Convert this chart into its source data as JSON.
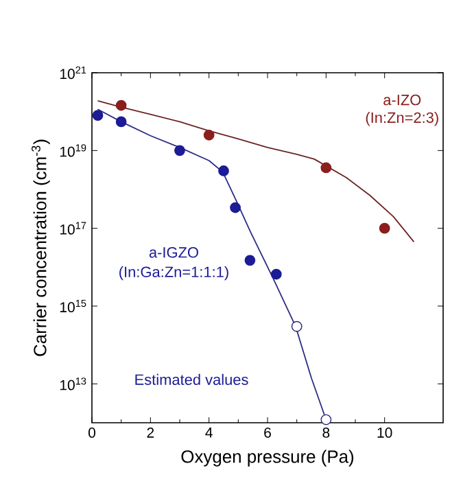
{
  "chart_data": {
    "type": "scatter",
    "xlabel": "Oxygen pressure (Pa)",
    "ylabel": "Carrier concentration (cm$^{-3}$)",
    "log": "y",
    "grid": false,
    "xlim": [
      0,
      12
    ],
    "ylim": [
      1000000000000.0,
      1e+21
    ],
    "xticks": [
      0,
      2,
      4,
      6,
      8,
      10
    ],
    "yticks": [
      {
        "value": 10000000000000.0,
        "label": "10$^{13}$"
      },
      {
        "value": 1000000000000000.0,
        "label": "10$^{15}$"
      },
      {
        "value": 1e+17,
        "label": "10$^{17}$"
      },
      {
        "value": 1e+19,
        "label": "10$^{19}$"
      },
      {
        "value": 1e+21,
        "label": "10$^{21}$"
      }
    ],
    "series": [
      {
        "type": "line",
        "color": "#6b2323",
        "line_style": "solid",
        "marker": "none",
        "x": [
          0.2,
          1,
          2,
          3,
          4,
          5,
          6,
          7,
          7.6,
          8.7,
          9.5,
          10.3,
          11.0
        ],
        "values": [
          1.9e+20,
          1.3e+20,
          8.5e+19,
          5.5e+19,
          3.2e+19,
          2e+19,
          1.2e+19,
          8e+18,
          6e+18,
          2e+18,
          7e+17,
          2e+17,
          4.5e+16
        ]
      },
      {
        "color": "#8b1e1e",
        "marker": "circle",
        "x": [
          1,
          4,
          8,
          10
        ],
        "values": [
          1.45e+20,
          2.5e+19,
          3.6e+18,
          1e+17
        ]
      },
      {
        "type": "line",
        "color": "#2b2b86",
        "line_style": "solid",
        "marker": "none",
        "x": [
          0.2,
          1,
          2,
          3,
          4,
          4.47,
          4.95,
          5.42,
          6.2,
          6.96,
          7.5,
          8
        ],
        "values": [
          1.15e+20,
          5.5e+19,
          2.4e+19,
          1.2e+19,
          5.5e+18,
          2.8e+18,
          4.8e+17,
          8e+16,
          5000000000000000.0,
          300000000000000.0,
          14000000000000.0,
          1200000000000.0
        ]
      },
      {
        "color": "#1c1c96",
        "marker": "circle",
        "x": [
          0.2,
          1,
          3,
          4.5,
          4.9,
          5.4,
          6.3
        ],
        "values": [
          8e+19,
          5.5e+19,
          1e+19,
          3e+18,
          3.4e+17,
          1.5e+16,
          6600000000000000.0
        ]
      },
      {
        "color": "#ffffff",
        "marker": "circle",
        "x": [
          7,
          8
        ],
        "values": [
          300000000000000.0,
          1200000000000.0
        ]
      }
    ],
    "annotations": [
      "a-IZO",
      "(In:Zn=2:3)",
      "a-IGZO",
      "(In:Ga:Zn=1:1:1)",
      "Estimated values"
    ]
  }
}
